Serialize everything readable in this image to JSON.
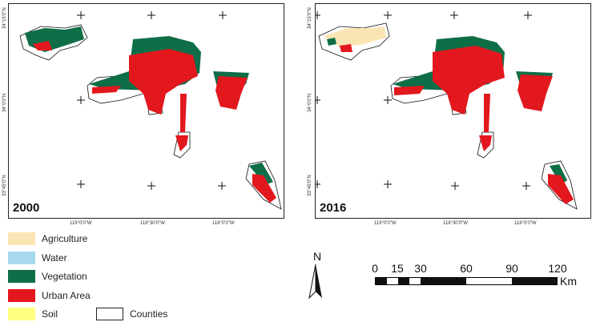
{
  "maps": [
    {
      "year": "2000",
      "lat_labels": [
        "34°15'0\"N",
        "34°0'0\"N",
        "33°45'0\"N"
      ],
      "lon_labels": [
        "119°0'0\"W",
        "118°30'0\"W",
        "118°0'0\"W"
      ]
    },
    {
      "year": "2016",
      "lat_labels": [
        "34°15'0\"N",
        "34°0'0\"N",
        "33°45'0\"N"
      ],
      "lon_labels": [
        "119°0'0\"W",
        "118°30'0\"W",
        "118°0'0\"W"
      ]
    }
  ],
  "legend": {
    "items": [
      {
        "label": "Agriculture",
        "color": "#fbe5b5"
      },
      {
        "label": "Water",
        "color": "#a6d8ee"
      },
      {
        "label": "Vegetation",
        "color": "#0e6e47"
      },
      {
        "label": "Urban Area",
        "color": "#e3171e"
      },
      {
        "label": "Soil",
        "color": "#ffff80"
      }
    ],
    "counties": {
      "label": "Counties",
      "color": "#ffffff"
    }
  },
  "north_arrow": {
    "label": "N"
  },
  "scale_bar": {
    "ticks": [
      "0",
      "15",
      "30",
      "60",
      "90",
      "120"
    ],
    "unit": "Km"
  }
}
